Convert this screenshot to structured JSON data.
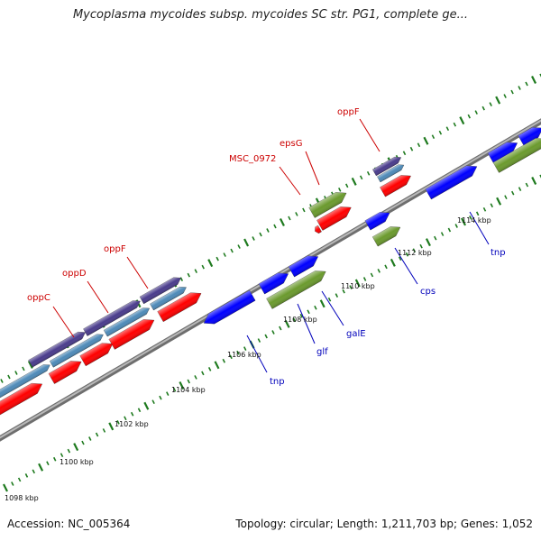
{
  "title": "Mycoplasma mycoides subsp. mycoides SC str. PG1, complete ge...",
  "footer": {
    "accession": "Accession: NC_005364",
    "summary": "Topology: circular; Length: 1,211,703 bp; Genes: 1,052"
  },
  "colors": {
    "background": "#ffffff",
    "backbone": "#8c8c8c",
    "tick": "#1e7a1e",
    "upper_label": "#cc0000",
    "lower_label": "#0000bb",
    "cds_red": "#ff0000",
    "cds_blue": "#0000ff",
    "cds_green": "#6b9a2e",
    "cds_purple": "#4a3c8c",
    "cds_steel": "#4e8ab8"
  },
  "kbp_labels": [
    "1098 kbp",
    "1100 kbp",
    "1102 kbp",
    "1104 kbp",
    "1106 kbp",
    "1108 kbp",
    "1110 kbp",
    "1112 kbp",
    "1114 kbp"
  ],
  "upper_labels": [
    "oppC",
    "oppD",
    "oppF",
    "MSC_0972",
    "epsG",
    "oppF"
  ],
  "lower_labels": [
    "tnp",
    "glf",
    "galE",
    "cps",
    "tnp"
  ]
}
